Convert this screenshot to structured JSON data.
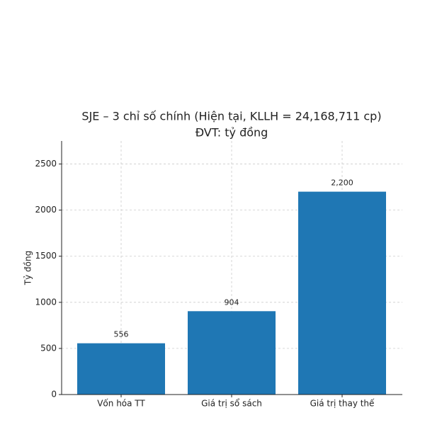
{
  "chart_data": {
    "type": "bar",
    "title": "SJE – 3 chỉ số chính (Hiện tại, KLLH = 24,168,711 cp)",
    "subtitle": "ĐVT: tỷ đồng",
    "y_label": "Tỷ đồng",
    "categories": [
      "Vốn hóa TT",
      "Giá trị sổ sách",
      "Giá trị thay thế"
    ],
    "values": [
      556,
      904,
      2200
    ],
    "value_labels": [
      "556",
      "904",
      "2,200"
    ],
    "color": "#1f77b4",
    "ylim": [
      0,
      2750
    ],
    "yticks": [
      0,
      500,
      1000,
      1500,
      2000,
      2500
    ],
    "grid": true
  }
}
